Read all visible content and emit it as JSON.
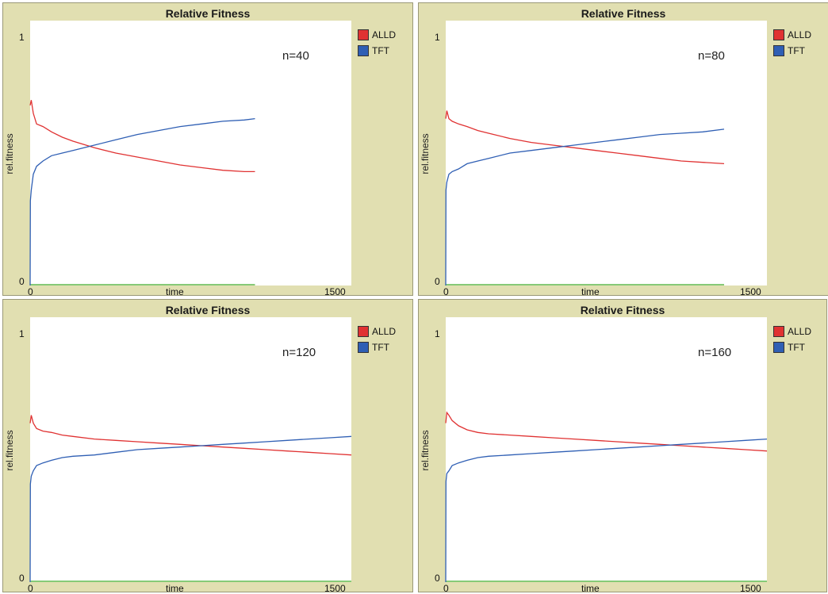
{
  "colors": {
    "ALLD": "#e03232",
    "TFT": "#2f5fb4",
    "zero": "#5fb84a"
  },
  "chart_data": [
    {
      "type": "line",
      "title": "Relative Fitness",
      "xlabel": "time",
      "ylabel": "rel.fitness",
      "annotation": "n=40",
      "xlim": [
        0,
        1500
      ],
      "ylim": [
        0,
        1
      ],
      "x_tick_labels": [
        "0",
        "1500"
      ],
      "y_tick_labels": [
        "0",
        "1"
      ],
      "series": [
        {
          "name": "ALLD",
          "x": [
            0,
            5,
            15,
            30,
            60,
            100,
            150,
            200,
            300,
            400,
            500,
            600,
            700,
            800,
            900,
            1000,
            1050
          ],
          "y": [
            0.68,
            0.7,
            0.65,
            0.61,
            0.6,
            0.58,
            0.56,
            0.545,
            0.52,
            0.5,
            0.485,
            0.47,
            0.455,
            0.445,
            0.435,
            0.43,
            0.43
          ]
        },
        {
          "name": "TFT",
          "x": [
            0,
            1,
            5,
            15,
            30,
            60,
            100,
            150,
            200,
            300,
            400,
            500,
            600,
            700,
            800,
            900,
            1000,
            1050
          ],
          "y": [
            0.0,
            0.32,
            0.36,
            0.42,
            0.45,
            0.47,
            0.49,
            0.5,
            0.51,
            0.53,
            0.55,
            0.57,
            0.585,
            0.6,
            0.61,
            0.62,
            0.625,
            0.63
          ]
        }
      ]
    },
    {
      "type": "line",
      "title": "Relative Fitness",
      "xlabel": "time",
      "ylabel": "rel.fitness",
      "annotation": "n=80",
      "xlim": [
        0,
        1500
      ],
      "ylim": [
        0,
        1
      ],
      "x_tick_labels": [
        "0",
        "1500"
      ],
      "y_tick_labels": [
        "0",
        "1"
      ],
      "series": [
        {
          "name": "ALLD",
          "x": [
            0,
            5,
            15,
            30,
            60,
            100,
            150,
            200,
            300,
            400,
            500,
            600,
            700,
            800,
            900,
            1000,
            1100,
            1200,
            1300
          ],
          "y": [
            0.63,
            0.66,
            0.63,
            0.62,
            0.61,
            0.6,
            0.585,
            0.575,
            0.555,
            0.54,
            0.53,
            0.52,
            0.51,
            0.5,
            0.49,
            0.48,
            0.47,
            0.465,
            0.46
          ]
        },
        {
          "name": "TFT",
          "x": [
            0,
            1,
            5,
            15,
            30,
            60,
            100,
            150,
            200,
            300,
            400,
            500,
            600,
            700,
            800,
            900,
            1000,
            1100,
            1200,
            1300
          ],
          "y": [
            0.0,
            0.36,
            0.39,
            0.42,
            0.43,
            0.44,
            0.46,
            0.47,
            0.48,
            0.5,
            0.51,
            0.52,
            0.53,
            0.54,
            0.55,
            0.56,
            0.57,
            0.575,
            0.58,
            0.59
          ]
        }
      ]
    },
    {
      "type": "line",
      "title": "Relative Fitness",
      "xlabel": "time",
      "ylabel": "rel.fitness",
      "annotation": "n=120",
      "xlim": [
        0,
        1500
      ],
      "ylim": [
        0,
        1
      ],
      "x_tick_labels": [
        "0",
        "1500"
      ],
      "y_tick_labels": [
        "0",
        "1"
      ],
      "series": [
        {
          "name": "ALLD",
          "x": [
            0,
            5,
            15,
            30,
            60,
            100,
            150,
            200,
            300,
            400,
            500,
            600,
            700,
            800,
            900,
            1000,
            1100,
            1200,
            1300,
            1400,
            1500
          ],
          "y": [
            0.6,
            0.63,
            0.6,
            0.58,
            0.57,
            0.565,
            0.555,
            0.55,
            0.54,
            0.535,
            0.53,
            0.525,
            0.52,
            0.515,
            0.51,
            0.505,
            0.5,
            0.495,
            0.49,
            0.485,
            0.48
          ]
        },
        {
          "name": "TFT",
          "x": [
            0,
            1,
            5,
            15,
            30,
            60,
            100,
            150,
            200,
            300,
            400,
            500,
            600,
            700,
            800,
            900,
            1000,
            1100,
            1200,
            1300,
            1400,
            1500
          ],
          "y": [
            0.0,
            0.37,
            0.4,
            0.42,
            0.44,
            0.45,
            0.46,
            0.47,
            0.475,
            0.48,
            0.49,
            0.5,
            0.505,
            0.51,
            0.515,
            0.52,
            0.525,
            0.53,
            0.535,
            0.54,
            0.545,
            0.55
          ]
        }
      ]
    },
    {
      "type": "line",
      "title": "Relative Fitness",
      "xlabel": "time",
      "ylabel": "rel.fitness",
      "annotation": "n=160",
      "xlim": [
        0,
        1500
      ],
      "ylim": [
        0,
        1
      ],
      "x_tick_labels": [
        "0",
        "1500"
      ],
      "y_tick_labels": [
        "0",
        "1"
      ],
      "series": [
        {
          "name": "ALLD",
          "x": [
            0,
            5,
            15,
            30,
            60,
            100,
            150,
            200,
            300,
            400,
            500,
            600,
            700,
            800,
            900,
            1000,
            1100,
            1200,
            1300,
            1400,
            1500
          ],
          "y": [
            0.6,
            0.64,
            0.63,
            0.61,
            0.59,
            0.575,
            0.565,
            0.56,
            0.555,
            0.55,
            0.545,
            0.54,
            0.535,
            0.53,
            0.525,
            0.52,
            0.515,
            0.51,
            0.505,
            0.5,
            0.495
          ]
        },
        {
          "name": "TFT",
          "x": [
            0,
            1,
            5,
            15,
            30,
            60,
            100,
            150,
            200,
            300,
            400,
            500,
            600,
            700,
            800,
            900,
            1000,
            1100,
            1200,
            1300,
            1400,
            1500
          ],
          "y": [
            0.0,
            0.38,
            0.41,
            0.42,
            0.44,
            0.45,
            0.46,
            0.47,
            0.475,
            0.48,
            0.485,
            0.49,
            0.495,
            0.5,
            0.505,
            0.51,
            0.515,
            0.52,
            0.525,
            0.53,
            0.535,
            0.54
          ]
        }
      ]
    }
  ]
}
